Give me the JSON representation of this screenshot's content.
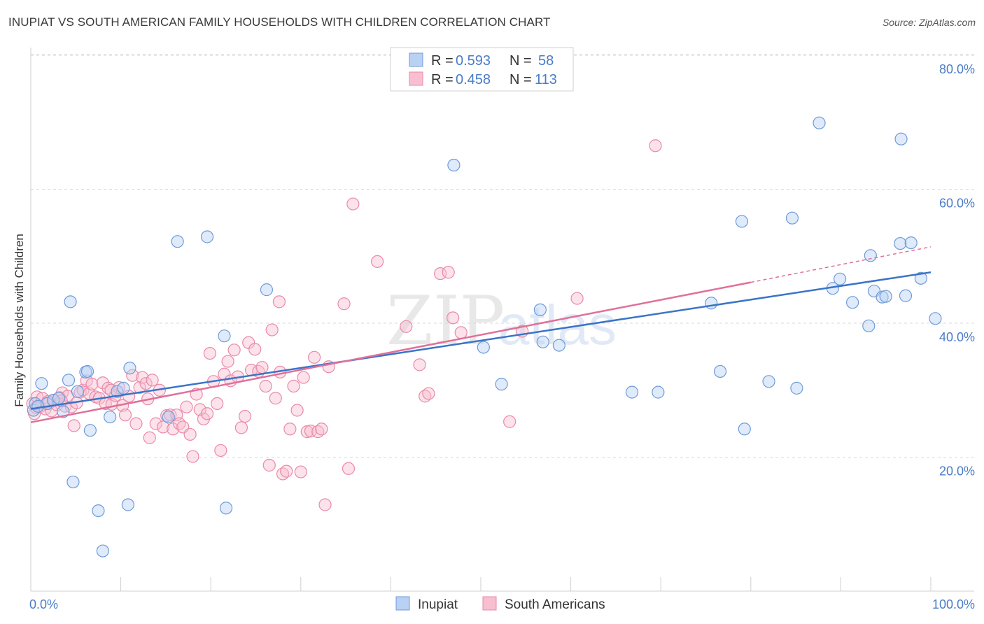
{
  "title": "INUPIAT VS SOUTH AMERICAN FAMILY HOUSEHOLDS WITH CHILDREN CORRELATION CHART",
  "source": "Source: ZipAtlas.com",
  "watermark": {
    "zip": "ZIP",
    "atlas": "atlas"
  },
  "colors": {
    "inupiat_fill": "#b9d1f3",
    "inupiat_stroke": "#6f9bd8",
    "inupiat_line": "#3a74c8",
    "south_fill": "#f8bfd0",
    "south_stroke": "#e98aa8",
    "south_line": "#e0709a",
    "grid": "#d8d8d8",
    "axis_text": "#4a7cc7"
  },
  "legend": {
    "rows": [
      {
        "r_label": "R =",
        "r_value": "0.593",
        "n_label": "N =",
        "n_value": "58"
      },
      {
        "r_label": "R =",
        "r_value": "0.458",
        "n_label": "N =",
        "n_value": "113"
      }
    ]
  },
  "bottom_legend": [
    "Inupiat",
    "South Americans"
  ],
  "chart_data": {
    "type": "scatter",
    "title": "INUPIAT VS SOUTH AMERICAN FAMILY HOUSEHOLDS WITH CHILDREN CORRELATION CHART",
    "xlabel": "",
    "ylabel": "Family Households with Children",
    "xlim": [
      0,
      100
    ],
    "ylim": [
      0,
      85
    ],
    "x_tick_labels": [
      "0.0%",
      "100.0%"
    ],
    "y_ticks": [
      20,
      40,
      60,
      80
    ],
    "y_tick_labels": [
      "20.0%",
      "40.0%",
      "60.0%",
      "80.0%"
    ],
    "grid": true,
    "legend_position": "top-center",
    "series": [
      {
        "name": "Inupiat",
        "trend": {
          "x0": 0,
          "y0": 27.2,
          "x1": 100,
          "y1": 47.6
        },
        "points": [
          [
            0.3,
            27
          ],
          [
            0.5,
            28
          ],
          [
            1.2,
            31
          ],
          [
            1.8,
            28
          ],
          [
            2.5,
            28.5
          ],
          [
            3.1,
            28.8
          ],
          [
            3.6,
            26.8
          ],
          [
            4.2,
            31.5
          ],
          [
            4.4,
            43.2
          ],
          [
            4.7,
            16.3
          ],
          [
            5.2,
            29.8
          ],
          [
            6.1,
            32.7
          ],
          [
            6.3,
            32.8
          ],
          [
            6.6,
            24
          ],
          [
            7.5,
            12
          ],
          [
            8,
            6
          ],
          [
            8.8,
            26
          ],
          [
            9.6,
            29.8
          ],
          [
            10.3,
            30.3
          ],
          [
            10.8,
            12.9
          ],
          [
            11,
            33.3
          ],
          [
            15.3,
            26
          ],
          [
            16.3,
            52.2
          ],
          [
            19.6,
            52.9
          ],
          [
            21.5,
            38.1
          ],
          [
            21.7,
            12.4
          ],
          [
            26.2,
            45
          ],
          [
            47,
            63.6
          ],
          [
            50.3,
            36.4
          ],
          [
            52.3,
            30.9
          ],
          [
            56.6,
            42
          ],
          [
            56.9,
            37.2
          ],
          [
            58.7,
            36.7
          ],
          [
            66.8,
            29.7
          ],
          [
            69.7,
            29.7
          ],
          [
            75.6,
            43
          ],
          [
            76.6,
            32.8
          ],
          [
            79,
            55.2
          ],
          [
            79.3,
            24.2
          ],
          [
            82,
            31.3
          ],
          [
            84.6,
            55.7
          ],
          [
            85.1,
            30.3
          ],
          [
            87.6,
            69.9
          ],
          [
            89.1,
            45.2
          ],
          [
            89.9,
            46.6
          ],
          [
            91.3,
            43.1
          ],
          [
            93.1,
            39.6
          ],
          [
            93.3,
            50.1
          ],
          [
            93.7,
            44.8
          ],
          [
            94.6,
            43.9
          ],
          [
            95,
            44
          ],
          [
            96.6,
            51.9
          ],
          [
            96.7,
            67.5
          ],
          [
            97.2,
            44.1
          ],
          [
            97.8,
            52
          ],
          [
            98.9,
            46.7
          ],
          [
            100.5,
            40.7
          ],
          [
            0.8,
            27.6
          ]
        ]
      },
      {
        "name": "South Americans",
        "trend": {
          "x0": 0,
          "y0": 25.2,
          "x1": 80,
          "y1": 46.1,
          "dash_x1": 100,
          "dash_y1": 51.4
        },
        "points": [
          [
            0.2,
            28
          ],
          [
            0.4,
            26.5
          ],
          [
            0.7,
            29
          ],
          [
            1,
            27.5
          ],
          [
            1.3,
            28.8
          ],
          [
            1.6,
            27.2
          ],
          [
            2,
            28
          ],
          [
            2.3,
            26.9
          ],
          [
            2.6,
            28.5
          ],
          [
            2.9,
            27.8
          ],
          [
            3.2,
            28.9
          ],
          [
            3.5,
            29.6
          ],
          [
            3.8,
            27.6
          ],
          [
            4.1,
            29.1
          ],
          [
            4.5,
            27.5
          ],
          [
            4.8,
            24.7
          ],
          [
            5.1,
            28.1
          ],
          [
            5.5,
            29.7
          ],
          [
            5.8,
            30
          ],
          [
            6.2,
            31.4
          ],
          [
            6.5,
            29.5
          ],
          [
            6.8,
            30.9
          ],
          [
            7.2,
            29
          ],
          [
            7.6,
            28.8
          ],
          [
            8,
            31.1
          ],
          [
            8.3,
            28
          ],
          [
            8.6,
            30.3
          ],
          [
            9,
            27.9
          ],
          [
            9.4,
            29.2
          ],
          [
            9.8,
            30.4
          ],
          [
            10.2,
            27.7
          ],
          [
            10.5,
            26.3
          ],
          [
            10.9,
            29.1
          ],
          [
            11.3,
            32.2
          ],
          [
            11.7,
            25
          ],
          [
            12.1,
            30.4
          ],
          [
            12.4,
            31.9
          ],
          [
            12.8,
            31
          ],
          [
            13.2,
            22.9
          ],
          [
            13.5,
            31.5
          ],
          [
            13.9,
            25
          ],
          [
            14.3,
            30
          ],
          [
            14.7,
            24.5
          ],
          [
            15.1,
            26.2
          ],
          [
            15.5,
            26.3
          ],
          [
            15.8,
            24.2
          ],
          [
            16.2,
            26.3
          ],
          [
            16.5,
            25
          ],
          [
            16.9,
            24.5
          ],
          [
            17.3,
            27.5
          ],
          [
            17.7,
            23.4
          ],
          [
            18,
            20.1
          ],
          [
            18.4,
            29.4
          ],
          [
            18.8,
            27.1
          ],
          [
            19.2,
            25.7
          ],
          [
            19.6,
            26.5
          ],
          [
            19.9,
            35.5
          ],
          [
            20.3,
            31.3
          ],
          [
            20.7,
            28
          ],
          [
            21.1,
            21
          ],
          [
            21.5,
            32.4
          ],
          [
            21.9,
            34.3
          ],
          [
            22.2,
            31.4
          ],
          [
            22.6,
            36
          ],
          [
            23,
            32
          ],
          [
            23.4,
            24.4
          ],
          [
            23.8,
            26.1
          ],
          [
            24.2,
            37.1
          ],
          [
            24.5,
            33
          ],
          [
            24.9,
            36.1
          ],
          [
            25.3,
            32.8
          ],
          [
            25.7,
            33.4
          ],
          [
            26.1,
            30.6
          ],
          [
            26.5,
            18.8
          ],
          [
            26.8,
            39
          ],
          [
            27.2,
            28.8
          ],
          [
            27.6,
            43.2
          ],
          [
            28,
            17.5
          ],
          [
            28.4,
            17.9
          ],
          [
            28.8,
            24.2
          ],
          [
            29.2,
            30.6
          ],
          [
            29.6,
            27
          ],
          [
            30,
            17.8
          ],
          [
            30.3,
            31.9
          ],
          [
            30.7,
            23.8
          ],
          [
            31.1,
            23.9
          ],
          [
            31.5,
            34.9
          ],
          [
            31.9,
            23.8
          ],
          [
            32.3,
            24.2
          ],
          [
            32.7,
            12.9
          ],
          [
            33.1,
            33.5
          ],
          [
            34.8,
            42.9
          ],
          [
            35.3,
            18.3
          ],
          [
            35.8,
            57.8
          ],
          [
            38.5,
            49.2
          ],
          [
            41.7,
            39.5
          ],
          [
            43.2,
            33.8
          ],
          [
            43.8,
            29.1
          ],
          [
            44.2,
            29.5
          ],
          [
            45.5,
            47.4
          ],
          [
            46.4,
            47.6
          ],
          [
            46.9,
            40.8
          ],
          [
            47.8,
            38.6
          ],
          [
            53.2,
            25.3
          ],
          [
            54.6,
            38.8
          ],
          [
            60.7,
            43.7
          ],
          [
            69.4,
            66.5
          ],
          [
            0.6,
            27.4
          ],
          [
            1.9,
            28.3
          ],
          [
            3.4,
            28.4
          ],
          [
            8.9,
            30
          ],
          [
            13,
            28.7
          ],
          [
            27.7,
            32.7
          ]
        ]
      }
    ]
  }
}
